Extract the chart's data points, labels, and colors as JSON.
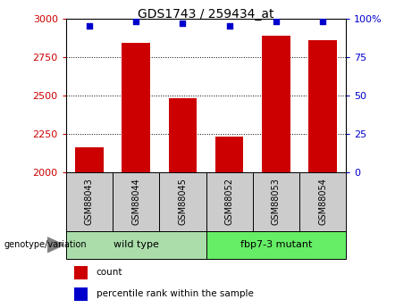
{
  "title": "GDS1743 / 259434_at",
  "samples": [
    "GSM88043",
    "GSM88044",
    "GSM88045",
    "GSM88052",
    "GSM88053",
    "GSM88054"
  ],
  "counts": [
    2165,
    2840,
    2480,
    2235,
    2890,
    2860
  ],
  "percentile_ranks": [
    95,
    98,
    97,
    95,
    98,
    98
  ],
  "ylim_left": [
    2000,
    3000
  ],
  "ylim_right": [
    0,
    100
  ],
  "yticks_left": [
    2000,
    2250,
    2500,
    2750,
    3000
  ],
  "yticks_right": [
    0,
    25,
    50,
    75,
    100
  ],
  "bar_color": "#cc0000",
  "dot_color": "#0000cc",
  "groups": [
    {
      "label": "wild type",
      "color": "#aaddaa"
    },
    {
      "label": "fbp7-3 mutant",
      "color": "#66ee66"
    }
  ],
  "group_box_color": "#cccccc",
  "bar_left_color": "#cc0000",
  "right_axis_color": "#0000cc",
  "grid_color": "#000000",
  "background_color": "#ffffff",
  "legend_count_color": "#cc0000",
  "legend_percentile_color": "#0000cc",
  "genotype_label": "genotype/variation"
}
